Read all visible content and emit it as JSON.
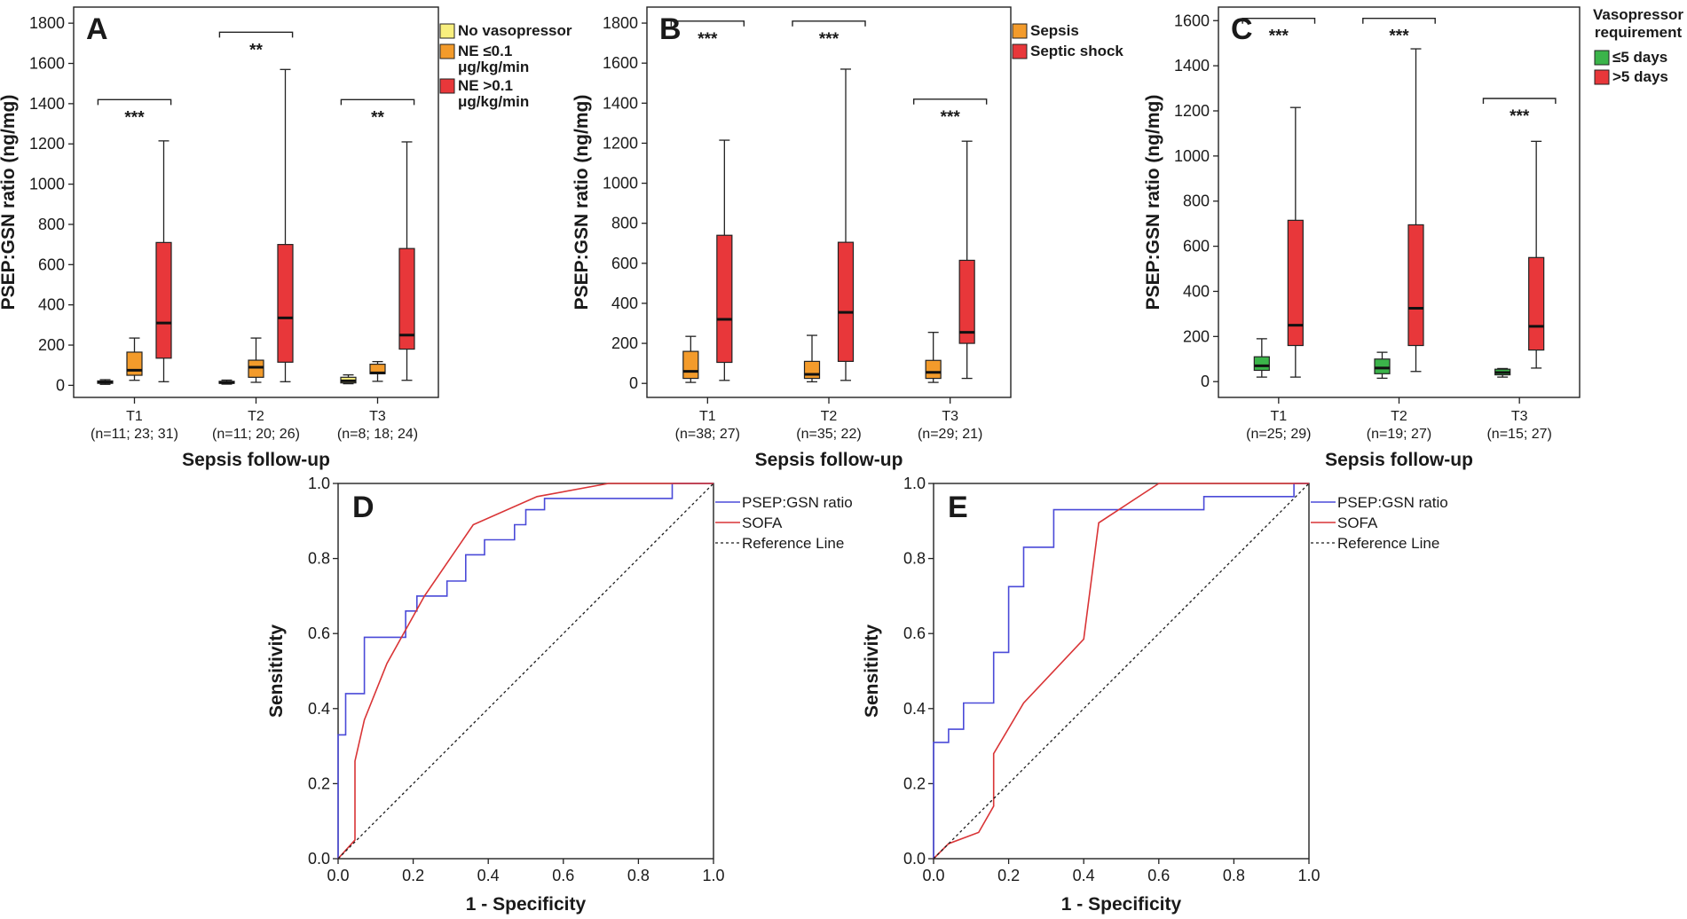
{
  "colors": {
    "no_vaso": "#f8ef7e",
    "orange": "#f39b2b",
    "red": "#e8373a",
    "green": "#3bb44a",
    "blue": "#4a4ad8",
    "roc_red": "#d93436",
    "box_stroke": "#1a1a1a"
  },
  "chart_data": [
    {
      "id": "A",
      "type": "box",
      "title": "A",
      "ylabel": "PSEP:GSN ratio (ng/mg)",
      "xlabel": "Sepsis follow-up",
      "ylim": [
        -60,
        1880
      ],
      "yticks": [
        0,
        200,
        400,
        600,
        800,
        1000,
        1200,
        1400,
        1600,
        1800
      ],
      "legend_title": "",
      "legend": [
        {
          "label": "No vasopressor",
          "color": "no_vaso"
        },
        {
          "label": "NE ≤0.1 μg/kg/min",
          "color": "orange"
        },
        {
          "label": "NE >0.1 μg/kg/min",
          "color": "red"
        }
      ],
      "groups": [
        {
          "label": "T1",
          "n": "(n=11; 23; 31)",
          "boxes": [
            {
              "series": 0,
              "min": 5,
              "q1": 10,
              "median": 15,
              "q3": 22,
              "max": 28
            },
            {
              "series": 1,
              "min": 25,
              "q1": 50,
              "median": 75,
              "q3": 165,
              "max": 235
            },
            {
              "series": 2,
              "min": 18,
              "q1": 135,
              "median": 310,
              "q3": 710,
              "max": 1215
            }
          ]
        },
        {
          "label": "T2",
          "n": "(n=11; 20; 26)",
          "boxes": [
            {
              "series": 0,
              "min": 6,
              "q1": 10,
              "median": 14,
              "q3": 20,
              "max": 26
            },
            {
              "series": 1,
              "min": 15,
              "q1": 40,
              "median": 90,
              "q3": 125,
              "max": 235
            },
            {
              "series": 2,
              "min": 18,
              "q1": 115,
              "median": 335,
              "q3": 700,
              "max": 1570
            }
          ]
        },
        {
          "label": "T3",
          "n": "(n=8; 18; 24)",
          "boxes": [
            {
              "series": 0,
              "min": 8,
              "q1": 12,
              "median": 22,
              "q3": 40,
              "max": 52
            },
            {
              "series": 1,
              "min": 20,
              "q1": 58,
              "median": 62,
              "q3": 105,
              "max": 118
            },
            {
              "series": 2,
              "min": 25,
              "q1": 180,
              "median": 250,
              "q3": 680,
              "max": 1210
            }
          ]
        }
      ],
      "significance": [
        {
          "group": 0,
          "text": "***",
          "y": 1420
        },
        {
          "group": 1,
          "text": "**",
          "y": 1755
        },
        {
          "group": 2,
          "text": "**",
          "y": 1420
        }
      ]
    },
    {
      "id": "B",
      "type": "box",
      "title": "B",
      "ylabel": "PSEP:GSN ratio (ng/mg)",
      "xlabel": "Sepsis follow-up",
      "ylim": [
        -70,
        1880
      ],
      "yticks": [
        0,
        200,
        400,
        600,
        800,
        1000,
        1200,
        1400,
        1600,
        1800
      ],
      "legend_title": "",
      "legend": [
        {
          "label": "Sepsis",
          "color": "orange"
        },
        {
          "label": "Septic shock",
          "color": "red"
        }
      ],
      "groups": [
        {
          "label": "T1",
          "n": "(n=38; 27)",
          "boxes": [
            {
              "series": 0,
              "min": 5,
              "q1": 25,
              "median": 60,
              "q3": 160,
              "max": 235
            },
            {
              "series": 1,
              "min": 15,
              "q1": 105,
              "median": 320,
              "q3": 740,
              "max": 1215
            }
          ]
        },
        {
          "label": "T2",
          "n": "(n=35; 22)",
          "boxes": [
            {
              "series": 0,
              "min": 8,
              "q1": 25,
              "median": 45,
              "q3": 110,
              "max": 240
            },
            {
              "series": 1,
              "min": 15,
              "q1": 110,
              "median": 355,
              "q3": 705,
              "max": 1570
            }
          ]
        },
        {
          "label": "T3",
          "n": "(n=29; 21)",
          "boxes": [
            {
              "series": 0,
              "min": 5,
              "q1": 25,
              "median": 55,
              "q3": 115,
              "max": 255
            },
            {
              "series": 1,
              "min": 25,
              "q1": 200,
              "median": 255,
              "q3": 615,
              "max": 1210
            }
          ]
        }
      ],
      "significance": [
        {
          "group": 0,
          "text": "***",
          "y": 1810
        },
        {
          "group": 1,
          "text": "***",
          "y": 1810
        },
        {
          "group": 2,
          "text": "***",
          "y": 1420
        }
      ]
    },
    {
      "id": "C",
      "type": "box",
      "title": "C",
      "ylabel": "PSEP:GSN ratio (ng/mg)",
      "xlabel": "Sepsis follow-up",
      "ylim": [
        -70,
        1660
      ],
      "yticks": [
        0,
        200,
        400,
        600,
        800,
        1000,
        1200,
        1400,
        1600
      ],
      "legend_title": "Vasopressor requirement",
      "legend_title_lines": [
        "Vasopressor",
        "requirement"
      ],
      "legend": [
        {
          "label": "≤5 days",
          "color": "green"
        },
        {
          "label": ">5 days",
          "color": "red"
        }
      ],
      "groups": [
        {
          "label": "T1",
          "n": "(n=25; 29)",
          "boxes": [
            {
              "series": 0,
              "min": 20,
              "q1": 50,
              "median": 70,
              "q3": 110,
              "max": 190
            },
            {
              "series": 1,
              "min": 20,
              "q1": 160,
              "median": 250,
              "q3": 715,
              "max": 1215
            }
          ]
        },
        {
          "label": "T2",
          "n": "(n=19; 27)",
          "boxes": [
            {
              "series": 0,
              "min": 15,
              "q1": 35,
              "median": 60,
              "q3": 100,
              "max": 130
            },
            {
              "series": 1,
              "min": 45,
              "q1": 160,
              "median": 325,
              "q3": 695,
              "max": 1475
            }
          ]
        },
        {
          "label": "T3",
          "n": "(n=15; 27)",
          "boxes": [
            {
              "series": 0,
              "min": 20,
              "q1": 30,
              "median": 40,
              "q3": 55,
              "max": 58
            },
            {
              "series": 1,
              "min": 60,
              "q1": 140,
              "median": 245,
              "q3": 550,
              "max": 1065
            }
          ]
        }
      ],
      "significance": [
        {
          "group": 0,
          "text": "***",
          "y": 1610
        },
        {
          "group": 1,
          "text": "***",
          "y": 1610
        },
        {
          "group": 2,
          "text": "***",
          "y": 1255
        }
      ]
    },
    {
      "id": "D",
      "type": "line",
      "title": "D",
      "xlabel": "1 - Specificity",
      "ylabel": "Sensitivity",
      "xlim": [
        0,
        1
      ],
      "ylim": [
        0,
        1
      ],
      "ticks": [
        0.0,
        0.2,
        0.4,
        0.6,
        0.8,
        1.0
      ],
      "tick_labels": [
        "0.0",
        "0.2",
        "0.4",
        "0.6",
        "0.8",
        "1.0"
      ],
      "legend": [
        {
          "label": "PSEP:GSN ratio",
          "color": "blue",
          "style": "solid"
        },
        {
          "label": "SOFA",
          "color": "roc_red",
          "style": "solid"
        },
        {
          "label": "Reference Line",
          "color": "box_stroke",
          "style": "dotted"
        }
      ],
      "series": [
        {
          "name": "PSEP:GSN ratio",
          "color": "blue",
          "points": [
            [
              0,
              0
            ],
            [
              0,
              0.33
            ],
            [
              0.02,
              0.33
            ],
            [
              0.02,
              0.44
            ],
            [
              0.07,
              0.44
            ],
            [
              0.07,
              0.59
            ],
            [
              0.18,
              0.59
            ],
            [
              0.18,
              0.66
            ],
            [
              0.21,
              0.66
            ],
            [
              0.21,
              0.7
            ],
            [
              0.29,
              0.7
            ],
            [
              0.29,
              0.74
            ],
            [
              0.34,
              0.74
            ],
            [
              0.34,
              0.81
            ],
            [
              0.39,
              0.81
            ],
            [
              0.39,
              0.85
            ],
            [
              0.47,
              0.85
            ],
            [
              0.47,
              0.89
            ],
            [
              0.5,
              0.89
            ],
            [
              0.5,
              0.93
            ],
            [
              0.55,
              0.93
            ],
            [
              0.55,
              0.96
            ],
            [
              0.89,
              0.96
            ],
            [
              0.89,
              1.0
            ],
            [
              1.0,
              1.0
            ]
          ]
        },
        {
          "name": "SOFA",
          "color": "roc_red",
          "points": [
            [
              0,
              0
            ],
            [
              0.045,
              0.05
            ],
            [
              0.045,
              0.26
            ],
            [
              0.07,
              0.37
            ],
            [
              0.13,
              0.52
            ],
            [
              0.23,
              0.7
            ],
            [
              0.36,
              0.89
            ],
            [
              0.53,
              0.965
            ],
            [
              0.72,
              1.0
            ],
            [
              1.0,
              1.0
            ]
          ]
        },
        {
          "name": "Reference Line",
          "color": "box_stroke",
          "points": [
            [
              0,
              0
            ],
            [
              1,
              1
            ]
          ]
        }
      ]
    },
    {
      "id": "E",
      "type": "line",
      "title": "E",
      "xlabel": "1 - Specificity",
      "ylabel": "Sensitivity",
      "xlim": [
        0,
        1
      ],
      "ylim": [
        0,
        1
      ],
      "ticks": [
        0.0,
        0.2,
        0.4,
        0.6,
        0.8,
        1.0
      ],
      "tick_labels": [
        "0.0",
        "0.2",
        "0.4",
        "0.6",
        "0.8",
        "1.0"
      ],
      "legend": [
        {
          "label": "PSEP:GSN ratio",
          "color": "blue",
          "style": "solid"
        },
        {
          "label": "SOFA",
          "color": "roc_red",
          "style": "solid"
        },
        {
          "label": "Reference Line",
          "color": "box_stroke",
          "style": "dotted"
        }
      ],
      "series": [
        {
          "name": "PSEP:GSN ratio",
          "color": "blue",
          "points": [
            [
              0,
              0
            ],
            [
              0,
              0.31
            ],
            [
              0.04,
              0.31
            ],
            [
              0.04,
              0.345
            ],
            [
              0.08,
              0.345
            ],
            [
              0.08,
              0.415
            ],
            [
              0.16,
              0.415
            ],
            [
              0.16,
              0.55
            ],
            [
              0.2,
              0.55
            ],
            [
              0.2,
              0.725
            ],
            [
              0.24,
              0.725
            ],
            [
              0.24,
              0.83
            ],
            [
              0.32,
              0.83
            ],
            [
              0.32,
              0.93
            ],
            [
              0.72,
              0.93
            ],
            [
              0.72,
              0.965
            ],
            [
              0.96,
              0.965
            ],
            [
              0.96,
              1.0
            ],
            [
              1.0,
              1.0
            ]
          ]
        },
        {
          "name": "SOFA",
          "color": "roc_red",
          "points": [
            [
              0,
              0
            ],
            [
              0.04,
              0.04
            ],
            [
              0.12,
              0.07
            ],
            [
              0.16,
              0.14
            ],
            [
              0.16,
              0.28
            ],
            [
              0.24,
              0.415
            ],
            [
              0.4,
              0.585
            ],
            [
              0.44,
              0.895
            ],
            [
              0.6,
              1.0
            ],
            [
              1.0,
              1.0
            ]
          ]
        },
        {
          "name": "Reference Line",
          "color": "box_stroke",
          "points": [
            [
              0,
              0
            ],
            [
              1,
              1
            ]
          ]
        }
      ]
    }
  ]
}
